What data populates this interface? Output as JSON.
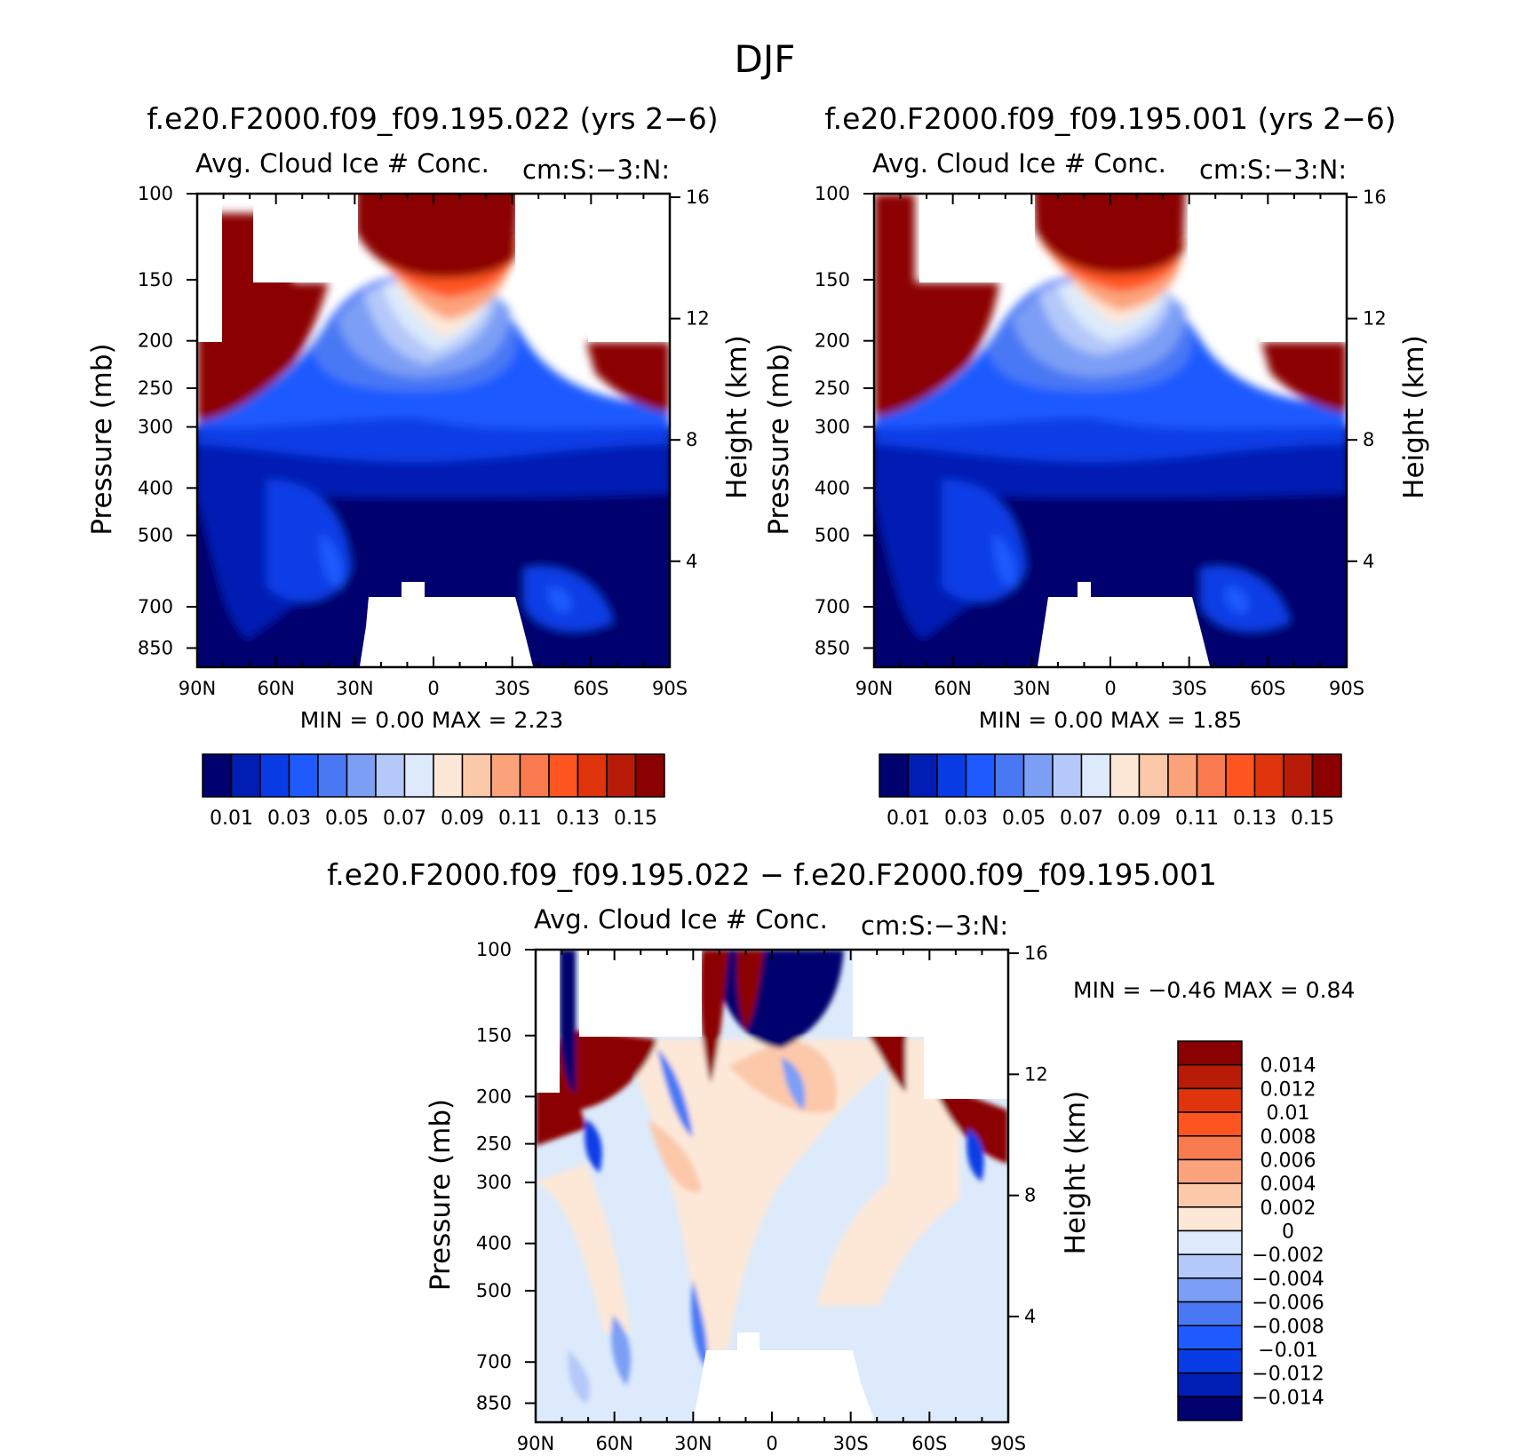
{
  "figure": {
    "title": "DJF"
  },
  "colors": {
    "abs_palette": [
      "#00006e",
      "#001eb4",
      "#0a3ce6",
      "#1e5aff",
      "#4a78f5",
      "#7c9ef5",
      "#b4c8fa",
      "#dceafb",
      "#fde8d8",
      "#fcc8aa",
      "#fca37b",
      "#f87a4e",
      "#ff5520",
      "#e0340c",
      "#b81c08",
      "#8b0000"
    ],
    "diff_palette": [
      "#00006e",
      "#001eb4",
      "#0a3ce6",
      "#1e5aff",
      "#4a78f5",
      "#7c9ef5",
      "#b4c8fa",
      "#dceafb",
      "#fde8d8",
      "#fcc8aa",
      "#fca37b",
      "#f87a4e",
      "#ff5520",
      "#e0340c",
      "#b81c08",
      "#8b0000"
    ]
  },
  "chart_data": [
    {
      "type": "heatmap",
      "title": "f.e20.F2000.f09_f09.195.022 (yrs 2−6)",
      "subtitle_left": "Avg. Cloud Ice # Conc.",
      "subtitle_right": "cm:S:−3:N:",
      "ylabel": "Pressure (mb)",
      "ylabel_right": "Height (km)",
      "x_ticks": [
        "90N",
        "60N",
        "30N",
        "0",
        "30S",
        "60S",
        "90S"
      ],
      "y_ticks": [
        "100",
        "150",
        "200",
        "250",
        "300",
        "400",
        "500",
        "700",
        "850"
      ],
      "y_right_ticks": [
        "16",
        "12",
        "8",
        "4"
      ],
      "stats_text": "MIN =     0.00   MAX =     2.23",
      "colorbar_labels": [
        "0.01",
        "0.03",
        "0.05",
        "0.07",
        "0.09",
        "0.11",
        "0.13",
        "0.15"
      ],
      "colorbar_levels": 16,
      "colorbar_orientation": "horizontal"
    },
    {
      "type": "heatmap",
      "title": "f.e20.F2000.f09_f09.195.001 (yrs 2−6)",
      "subtitle_left": "Avg. Cloud Ice # Conc.",
      "subtitle_right": "cm:S:−3:N:",
      "ylabel": "Pressure (mb)",
      "ylabel_right": "Height (km)",
      "x_ticks": [
        "90N",
        "60N",
        "30N",
        "0",
        "30S",
        "60S",
        "90S"
      ],
      "y_ticks": [
        "100",
        "150",
        "200",
        "250",
        "300",
        "400",
        "500",
        "700",
        "850"
      ],
      "y_right_ticks": [
        "16",
        "12",
        "8",
        "4"
      ],
      "stats_text": "MIN =     0.00   MAX =     1.85",
      "colorbar_labels": [
        "0.01",
        "0.03",
        "0.05",
        "0.07",
        "0.09",
        "0.11",
        "0.13",
        "0.15"
      ],
      "colorbar_levels": 16,
      "colorbar_orientation": "horizontal"
    },
    {
      "type": "heatmap",
      "title": "f.e20.F2000.f09_f09.195.022 − f.e20.F2000.f09_f09.195.001",
      "subtitle_left": "Avg. Cloud Ice # Conc.",
      "subtitle_right": "cm:S:−3:N:",
      "ylabel": "Pressure (mb)",
      "ylabel_right": "Height (km)",
      "x_ticks": [
        "90N",
        "60N",
        "30N",
        "0",
        "30S",
        "60S",
        "90S"
      ],
      "y_ticks": [
        "100",
        "150",
        "200",
        "250",
        "300",
        "400",
        "500",
        "700",
        "850"
      ],
      "y_right_ticks": [
        "16",
        "12",
        "8",
        "4"
      ],
      "stats_text": "MIN =    −0.46   MAX =     0.84",
      "colorbar_labels": [
        "0.014",
        "0.012",
        "0.01",
        "0.008",
        "0.006",
        "0.004",
        "0.002",
        "0",
        "−0.002",
        "−0.004",
        "−0.006",
        "−0.008",
        "−0.01",
        "−0.012",
        "−0.014"
      ],
      "colorbar_levels": 16,
      "colorbar_orientation": "vertical"
    }
  ]
}
